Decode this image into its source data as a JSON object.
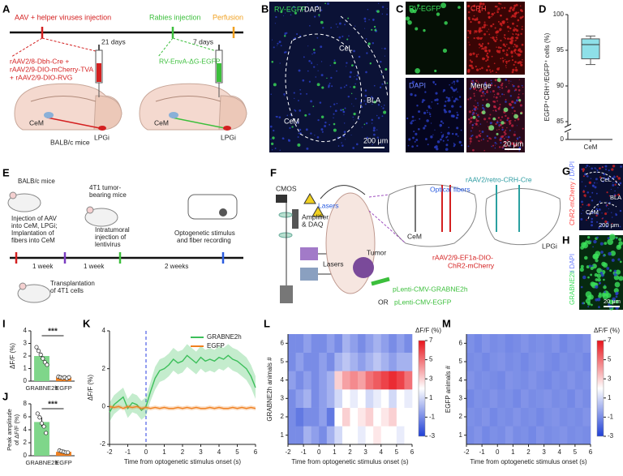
{
  "figure": {
    "panel_labels": [
      "A",
      "B",
      "C",
      "D",
      "E",
      "F",
      "G",
      "H",
      "I",
      "J",
      "K",
      "L",
      "M"
    ],
    "A": [
      "AAV + helper viruses injection",
      "Rabies injection",
      "Perfusion",
      "21 days",
      "7 days",
      "rAAV2/8-Dbh-Cre +",
      "rAAV2/9-DIO-mCherry-TVA",
      "+ rAAV2/9-DIO-RVG",
      "RV-EnvA-ΔG-EGFP",
      "CeM",
      "CeM",
      "BALB/c mice",
      "LPGi",
      "LPGi"
    ],
    "B": [
      "RV-EGFP",
      "/ DAPI",
      "CeL",
      "CeM",
      "BLA",
      "200 μm"
    ],
    "C": [
      "RV-EGFP",
      "CRH",
      "DAPI",
      "Merge",
      "20 μm"
    ],
    "E": [
      "BALB/c mice",
      "Injection of AAV",
      "into CeM, LPGi;",
      "Implantation of",
      "fibers into CeM",
      "4T1 tumor-",
      "bearing mice",
      "Intratumoral",
      "injection of",
      "lentivirus",
      "Optogenetic stimulus",
      "and fiber recording",
      "1 week",
      "1 week",
      "2 weeks",
      "Transplantation",
      "of 4T1 cells"
    ],
    "F": [
      "CMOS",
      "Amplifier",
      "& DAQ",
      "Lasers",
      "Lasers",
      "Tumor",
      "Optical fibers",
      "rAAV2/retro-CRH-Cre",
      "CeM",
      "LPGi",
      "rAAV2/9-EF1a-DIO-",
      "ChR2-mCherry",
      "pLenti-CMV-GRABNE2h",
      "OR",
      "pLenti-CMV-EGFP"
    ],
    "G": [
      "ChR2-mCherry",
      "/ DAPI",
      "CeL",
      "BLA",
      "CeM",
      "200 μm"
    ],
    "H": [
      "GRABNE2h",
      "/ DAPI",
      "20 μm"
    ]
  },
  "chart_data": [
    {
      "type": "box",
      "y_label": "EGFP⁺CRH⁺/EGFP⁺ cells (%)",
      "categories": [
        "CeM"
      ],
      "box": {
        "min": 93,
        "q1": 93.8,
        "median": 95.8,
        "q3": 96.6,
        "max": 97
      },
      "color": "#8ee0e8",
      "ylim": [
        85,
        100
      ],
      "yticks": [
        0,
        85,
        90,
        95,
        100
      ],
      "axis_break": true
    },
    {
      "type": "bar",
      "y_label": "ΔF/F (%)",
      "categories": [
        "GRABNE2h",
        "EGFP"
      ],
      "values": [
        2.0,
        0.3
      ],
      "errors": [
        0.25,
        0.05
      ],
      "colors": [
        "#7fd68a",
        "#f08020"
      ],
      "points": [
        [
          2.7,
          2.4,
          2.1,
          1.8,
          1.5,
          1.3
        ],
        [
          0.35,
          0.3,
          0.25,
          0.3,
          0.2,
          0.3
        ]
      ],
      "significance": "***",
      "ylim": [
        0,
        4
      ],
      "yticks": [
        0,
        1,
        2,
        3,
        4
      ]
    },
    {
      "type": "bar",
      "y_label": [
        "Peak amplitude",
        "of ΔF/F (%)"
      ],
      "categories": [
        "GRABNE2h",
        "EGFP"
      ],
      "values": [
        5.2,
        0.6
      ],
      "errors": [
        0.7,
        0.1
      ],
      "colors": [
        "#7fd68a",
        "#f08020"
      ],
      "points": [
        [
          6.5,
          5.9,
          5.0,
          4.5,
          3.5
        ],
        [
          0.8,
          0.7,
          0.6,
          0.5,
          0.5
        ]
      ],
      "significance": "***",
      "ylim": [
        0,
        8
      ],
      "yticks": [
        0,
        2,
        4,
        6,
        8
      ]
    },
    {
      "type": "line",
      "x_label": "Time from optogenetic stimulus onset (s)",
      "y_label": "ΔF/F (%)",
      "x": [
        -2,
        -1.75,
        -1.5,
        -1.25,
        -1,
        -0.75,
        -0.5,
        -0.25,
        0,
        0.25,
        0.5,
        0.75,
        1,
        1.25,
        1.5,
        1.75,
        2,
        2.25,
        2.5,
        2.75,
        3,
        3.25,
        3.5,
        3.75,
        4,
        4.25,
        4.5,
        4.75,
        5,
        5.25,
        5.5,
        5.75,
        6
      ],
      "series": [
        {
          "name": "GRABNE2h",
          "color": "#3cbf5a",
          "values": [
            -0.3,
            0.1,
            0.3,
            0.5,
            -0.1,
            0.2,
            0.1,
            -0.2,
            0,
            0.8,
            1.5,
            1.9,
            2.0,
            2.2,
            2.5,
            2.3,
            2.4,
            2.7,
            2.5,
            2.3,
            2.6,
            2.4,
            2.5,
            2.4,
            2.6,
            2.5,
            2.7,
            2.5,
            2.4,
            2.2,
            2.0,
            1.6,
            1.0
          ],
          "errors": [
            0.5,
            0.5,
            0.5,
            0.5,
            0.5,
            0.5,
            0.5,
            0.5,
            0.5,
            0.5,
            0.6,
            0.6,
            0.6,
            0.6,
            0.6,
            0.6,
            0.6,
            0.6,
            0.6,
            0.6,
            0.6,
            0.6,
            0.6,
            0.6,
            0.6,
            0.6,
            0.6,
            0.6,
            0.6,
            0.6,
            0.6,
            0.6,
            0.6
          ]
        },
        {
          "name": "EGFP",
          "color": "#f08020",
          "values": [
            0,
            -0.05,
            0,
            -0.1,
            0,
            -0.05,
            0,
            -0.1,
            -0.05,
            -0.1,
            -0.05,
            -0.1,
            -0.05,
            -0.1,
            -0.1,
            -0.05,
            -0.1,
            -0.05,
            -0.1,
            -0.05,
            -0.1,
            -0.1,
            -0.05,
            -0.1,
            -0.05,
            -0.1,
            -0.1,
            -0.05,
            -0.1,
            -0.05,
            -0.1,
            -0.05,
            -0.1
          ],
          "errors": [
            0.1,
            0.1,
            0.1,
            0.1,
            0.1,
            0.1,
            0.1,
            0.1,
            0.1,
            0.1,
            0.1,
            0.1,
            0.1,
            0.1,
            0.1,
            0.1,
            0.1,
            0.1,
            0.1,
            0.1,
            0.1,
            0.1,
            0.1,
            0.1,
            0.1,
            0.1,
            0.1,
            0.1,
            0.1,
            0.1,
            0.1,
            0.1,
            0.1
          ]
        }
      ],
      "onset_x": 0,
      "xlim": [
        -2,
        6
      ],
      "xticks": [
        -2,
        -1,
        0,
        1,
        2,
        3,
        4,
        5,
        6
      ],
      "ylim": [
        -2,
        4
      ],
      "yticks": [
        -2,
        0,
        2,
        4
      ],
      "legend": "upper-right"
    },
    {
      "type": "heatmap",
      "x_label": "Time from optogenetic stimulus onset (s)",
      "y_label": "GRABNE2h animals #",
      "colorbar_label": "ΔF/F (%)",
      "z": [
        [
          -1,
          -1,
          0,
          -0.5,
          -1,
          0,
          1,
          2,
          2,
          1.5,
          2,
          2.5,
          2,
          2,
          1.5,
          2
        ],
        [
          -1,
          -1.5,
          -1,
          -1,
          -0.5,
          -1.5,
          2,
          3,
          2,
          2.5,
          3,
          2,
          2.5,
          3,
          2,
          2
        ],
        [
          -1,
          -0.5,
          0,
          -1,
          -0.5,
          0,
          1,
          2,
          1.5,
          2,
          1,
          1.5,
          2,
          1,
          2,
          1.5
        ],
        [
          -0.5,
          -1,
          -0.5,
          -1,
          -0.5,
          0,
          3,
          4,
          4.5,
          4,
          5,
          5.5,
          6,
          6.5,
          6,
          5
        ],
        [
          -1,
          -0.5,
          -1,
          -1,
          -0.5,
          -1,
          0,
          0.5,
          0,
          -0.5,
          0,
          0.5,
          0,
          -0.5,
          0,
          0
        ],
        [
          -1,
          -1,
          -0.5,
          -1,
          -1,
          -0.5,
          -1,
          0,
          -0.5,
          -1,
          -0.5,
          0,
          -0.5,
          -1,
          -0.5,
          -1
        ]
      ],
      "colormap": [
        "#1f3fd6",
        "#ffffff",
        "#e8141c"
      ],
      "zlim": [
        -3,
        7
      ],
      "zticks": [
        -3,
        -1,
        1,
        3,
        5,
        7
      ],
      "xlim": [
        -2,
        6
      ],
      "xticks": [
        -2,
        -1,
        0,
        1,
        2,
        3,
        4,
        5,
        6
      ],
      "ylim": [
        0.5,
        6.5
      ],
      "yticks": [
        1,
        2,
        3,
        4,
        5,
        6
      ]
    },
    {
      "type": "heatmap",
      "x_label": "Time from optogenetic stimulus onset (s)",
      "y_label": "EGFP animals #",
      "colorbar_label": "ΔF/F (%)",
      "z": [
        [
          -1,
          -0.8,
          -1.1,
          -0.9,
          -1,
          -0.7,
          -1,
          -0.9,
          -1.1,
          -0.8,
          -1,
          -0.9,
          -0.8,
          -1,
          -0.9,
          -1
        ],
        [
          -0.9,
          -1,
          -0.8,
          -1.1,
          -0.9,
          -1,
          -0.8,
          -1,
          -0.9,
          -1.1,
          -0.9,
          -0.8,
          -1,
          -0.9,
          -1,
          -0.8
        ],
        [
          -1.1,
          -0.9,
          -1,
          -0.8,
          -1,
          -0.9,
          -1.1,
          -0.8,
          -1,
          -0.9,
          -0.8,
          -1,
          -0.9,
          -1.1,
          -0.8,
          -1
        ],
        [
          -0.8,
          -1,
          -0.9,
          -1,
          -1.1,
          -0.8,
          -0.9,
          -1,
          -0.8,
          -1,
          -1.1,
          -0.9,
          -1,
          -0.8,
          -1,
          -0.9
        ],
        [
          -1,
          -0.9,
          -1.1,
          -0.9,
          -0.8,
          -1,
          -0.9,
          -1.1,
          -0.9,
          -0.8,
          -1,
          -1.1,
          -0.9,
          -1,
          -0.9,
          -1.1
        ],
        [
          -0.9,
          -1.1,
          -0.8,
          -1,
          -0.9,
          -1.1,
          -1,
          -0.8,
          -1,
          -0.9,
          -1,
          -0.8,
          -1.1,
          -0.9,
          -1,
          -0.8
        ]
      ],
      "colormap": [
        "#1f3fd6",
        "#ffffff",
        "#e8141c"
      ],
      "zlim": [
        -3,
        7
      ],
      "zticks": [
        -3,
        -1,
        1,
        3,
        5,
        7
      ],
      "xlim": [
        -2,
        6
      ],
      "xticks": [
        -2,
        -1,
        0,
        1,
        2,
        3,
        4,
        5,
        6
      ],
      "ylim": [
        0.5,
        6.5
      ],
      "yticks": [
        1,
        2,
        3,
        4,
        5,
        6
      ]
    }
  ]
}
